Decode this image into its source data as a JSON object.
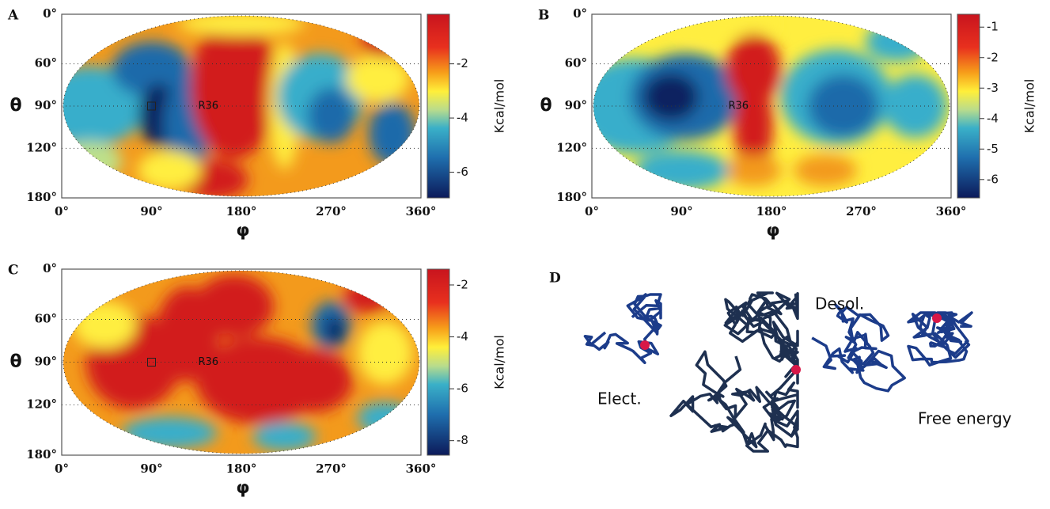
{
  "panels": [
    {
      "label": "A",
      "y_ticks": [
        "0°",
        "60°",
        "90°",
        "120°",
        "180°"
      ],
      "x_ticks": [
        "0°",
        "90°",
        "180°",
        "270°",
        "360°"
      ],
      "x_label": "φ",
      "y_label": "θ",
      "colorbar_label": "Kcal/mol",
      "colorbar_ticks": [
        "-2",
        "-4",
        "-6"
      ],
      "marker_label": "R36"
    },
    {
      "label": "B",
      "y_ticks": [
        "0°",
        "60°",
        "90°",
        "120°",
        "180°"
      ],
      "x_ticks": [
        "0°",
        "90°",
        "180°",
        "270°",
        "360°"
      ],
      "x_label": "φ",
      "y_label": "θ",
      "colorbar_label": "Kcal/mol",
      "colorbar_ticks": [
        "-1",
        "-2",
        "-3",
        "-4",
        "-5",
        "-6"
      ],
      "marker_label": "R36"
    },
    {
      "label": "C",
      "y_ticks": [
        "0°",
        "60°",
        "90°",
        "120°",
        "180°"
      ],
      "x_ticks": [
        "0°",
        "90°",
        "180°",
        "270°",
        "360°"
      ],
      "x_label": "φ",
      "y_label": "θ",
      "colorbar_label": "Kcal/mol",
      "colorbar_ticks": [
        "-2",
        "-4",
        "-6",
        "-8"
      ],
      "marker_label": "R36"
    }
  ],
  "panel_d": {
    "label": "D",
    "labels": [
      "Elect.",
      "Desol.",
      "Free energy"
    ]
  }
}
